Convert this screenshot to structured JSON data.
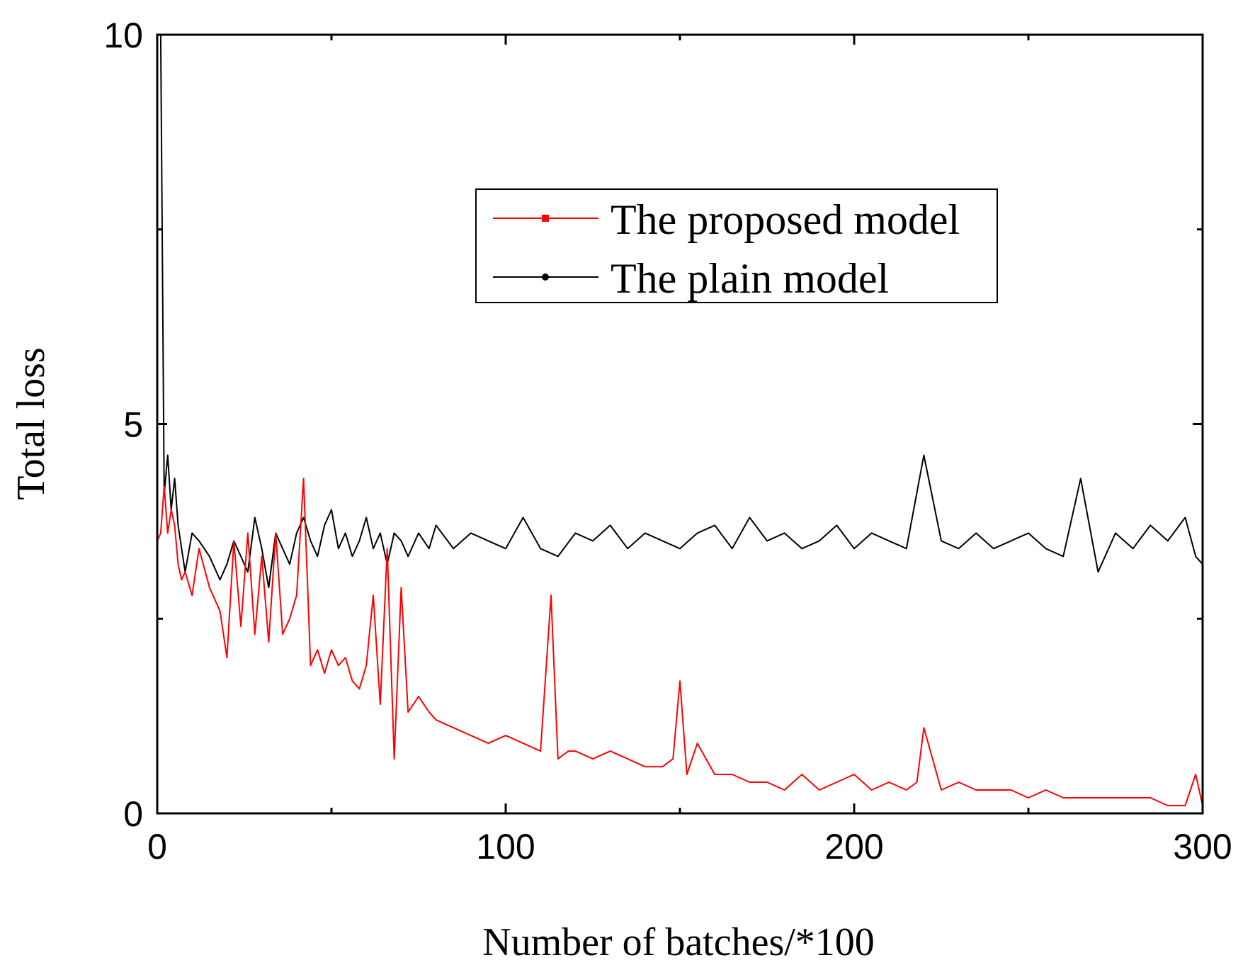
{
  "chart_data": {
    "type": "line",
    "title": "",
    "xlabel": "Number of batches/*100",
    "ylabel": "Total loss",
    "xlim": [
      0,
      300
    ],
    "ylim": [
      0,
      10
    ],
    "xticks": [
      0,
      100,
      200,
      300
    ],
    "xtick_labels": [
      "0",
      "100",
      "200",
      "300"
    ],
    "yticks": [
      0,
      5,
      10
    ],
    "ytick_labels": [
      "0",
      "5",
      "10"
    ],
    "grid": false,
    "legend": {
      "placement": "upper-center"
    },
    "series": [
      {
        "name": "The proposed model",
        "color": "#ff0000",
        "marker": "square",
        "x": [
          0,
          1,
          2,
          3,
          4,
          5,
          6,
          7,
          8,
          10,
          12,
          15,
          18,
          20,
          22,
          24,
          26,
          28,
          30,
          32,
          34,
          36,
          38,
          40,
          42,
          44,
          46,
          48,
          50,
          52,
          54,
          56,
          58,
          60,
          62,
          64,
          66,
          68,
          70,
          72,
          75,
          78,
          80,
          85,
          90,
          95,
          100,
          105,
          110,
          113,
          115,
          118,
          120,
          125,
          130,
          135,
          140,
          145,
          148,
          150,
          152,
          155,
          160,
          165,
          170,
          175,
          180,
          185,
          190,
          195,
          200,
          205,
          210,
          215,
          218,
          220,
          225,
          230,
          235,
          240,
          245,
          250,
          255,
          260,
          265,
          270,
          275,
          280,
          285,
          290,
          295,
          298,
          300
        ],
        "y": [
          3.5,
          3.6,
          4.2,
          3.6,
          3.9,
          3.7,
          3.2,
          3.0,
          3.1,
          2.8,
          3.4,
          2.9,
          2.6,
          2.0,
          3.5,
          2.4,
          3.6,
          2.3,
          3.3,
          2.2,
          3.6,
          2.3,
          2.5,
          2.8,
          4.3,
          1.9,
          2.1,
          1.8,
          2.1,
          1.9,
          2.0,
          1.7,
          1.6,
          1.9,
          2.8,
          1.4,
          3.4,
          0.7,
          2.9,
          1.3,
          1.5,
          1.3,
          1.2,
          1.1,
          1.0,
          0.9,
          1.0,
          0.9,
          0.8,
          2.8,
          0.7,
          0.8,
          0.8,
          0.7,
          0.8,
          0.7,
          0.6,
          0.6,
          0.7,
          1.7,
          0.5,
          0.9,
          0.5,
          0.5,
          0.4,
          0.4,
          0.3,
          0.5,
          0.3,
          0.4,
          0.5,
          0.3,
          0.4,
          0.3,
          0.4,
          1.1,
          0.3,
          0.4,
          0.3,
          0.3,
          0.3,
          0.2,
          0.3,
          0.2,
          0.2,
          0.2,
          0.2,
          0.2,
          0.2,
          0.1,
          0.1,
          0.5,
          0.1
        ]
      },
      {
        "name": "The plain model",
        "color": "#000000",
        "marker": "circle",
        "x": [
          0,
          1,
          2,
          3,
          4,
          5,
          6,
          7,
          8,
          10,
          12,
          15,
          18,
          20,
          22,
          24,
          26,
          28,
          30,
          32,
          34,
          36,
          38,
          40,
          42,
          44,
          46,
          48,
          50,
          52,
          54,
          56,
          58,
          60,
          62,
          64,
          66,
          68,
          70,
          72,
          75,
          78,
          80,
          85,
          90,
          95,
          100,
          105,
          110,
          115,
          120,
          125,
          130,
          135,
          140,
          145,
          150,
          155,
          160,
          165,
          170,
          175,
          180,
          185,
          190,
          195,
          200,
          205,
          210,
          215,
          220,
          225,
          230,
          235,
          240,
          245,
          250,
          255,
          260,
          265,
          270,
          275,
          280,
          285,
          290,
          295,
          298,
          300
        ],
        "y": [
          10,
          10,
          4.1,
          4.6,
          3.9,
          4.3,
          3.7,
          3.4,
          3.1,
          3.6,
          3.5,
          3.3,
          3.0,
          3.2,
          3.5,
          3.3,
          3.1,
          3.8,
          3.4,
          2.9,
          3.6,
          3.4,
          3.2,
          3.6,
          3.8,
          3.5,
          3.3,
          3.7,
          3.9,
          3.4,
          3.6,
          3.3,
          3.5,
          3.8,
          3.4,
          3.6,
          3.2,
          3.6,
          3.5,
          3.3,
          3.6,
          3.4,
          3.7,
          3.4,
          3.6,
          3.5,
          3.4,
          3.8,
          3.4,
          3.3,
          3.6,
          3.5,
          3.7,
          3.4,
          3.6,
          3.5,
          3.4,
          3.6,
          3.7,
          3.4,
          3.8,
          3.5,
          3.6,
          3.4,
          3.5,
          3.7,
          3.4,
          3.6,
          3.5,
          3.4,
          4.6,
          3.5,
          3.4,
          3.6,
          3.4,
          3.5,
          3.6,
          3.4,
          3.3,
          4.3,
          3.1,
          3.6,
          3.4,
          3.7,
          3.5,
          3.8,
          3.3,
          3.2
        ]
      }
    ]
  }
}
